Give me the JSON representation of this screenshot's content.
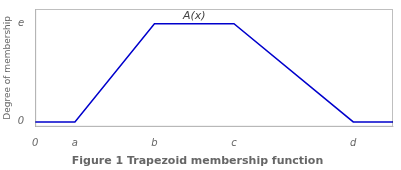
{
  "chart_data": {
    "type": "line",
    "title": "Figure 1 Trapezoid membership function",
    "x": [
      0,
      1,
      3,
      5,
      8,
      9
    ],
    "values": [
      0,
      0,
      1,
      1,
      0,
      0
    ],
    "color": "#0000cc",
    "xlim": [
      0,
      9
    ],
    "xticks": [
      0,
      {
        "value": 1,
        "label": "a"
      },
      {
        "value": 3,
        "label": "b"
      },
      {
        "value": 5,
        "label": "c"
      },
      {
        "value": 8,
        "label": "d"
      }
    ],
    "ylim": [
      -0.05,
      1.15
    ],
    "yticks": [
      0,
      {
        "value": 1,
        "label": "e"
      }
    ],
    "ylabel": "Degree of membership",
    "annotations": [
      {
        "text": "A(x)",
        "x": 4.0,
        "y": 1.02
      }
    ],
    "grid": false
  }
}
